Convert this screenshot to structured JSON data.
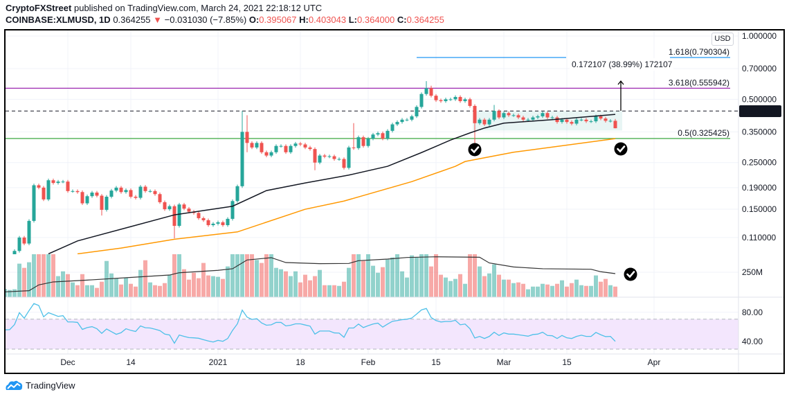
{
  "header": {
    "publisher": "CryptoFXStreet",
    "published_text": "published on TradingView.com, March 24, 2021 22:18:12 UTC",
    "symbol": "COINBASE:XLMUSD, 1D",
    "last": "0.364255",
    "change": "−0.031030 (−7.85%)",
    "o_label": "O:",
    "o": "0.395067",
    "h_label": "H:",
    "h": "0.403043",
    "l_label": "L:",
    "l": "0.364000",
    "c_label": "C:",
    "c": "0.364255",
    "down_arrow_icon": "triangle-down"
  },
  "currency_button": "USD",
  "brand": {
    "name": "TradingView",
    "icon": "tradingview-cloud-logo"
  },
  "colors": {
    "up": "#26a69a",
    "down": "#ef5350",
    "ma_fast": "#131722",
    "ma_slow": "#ff9800",
    "rsi": "#4dc0e8",
    "fib_blue": "#2196f3",
    "fib_purple": "#9c27b0",
    "fib_green": "#4caf50"
  },
  "chart_data": [
    {
      "type": "candlestick",
      "scale": "log",
      "grid": true,
      "y_ticks": [
        "1.000000",
        "0.700000",
        "0.500000",
        "0.350000",
        "0.250000",
        "0.190000",
        "0.150000",
        "0.110000"
      ],
      "x_ticks": [
        "Dec",
        "14",
        "2021",
        "18",
        "Feb",
        "15",
        "Mar",
        "15",
        "Apr"
      ],
      "current_price_label": "0.440000",
      "close": [
        0.085,
        0.088,
        0.095,
        0.11,
        0.103,
        0.132,
        0.195,
        0.19,
        0.167,
        0.206,
        0.2,
        0.203,
        0.203,
        0.183,
        0.183,
        0.181,
        0.16,
        0.173,
        0.18,
        0.174,
        0.149,
        0.172,
        0.184,
        0.19,
        0.181,
        0.185,
        0.172,
        0.17,
        0.192,
        0.183,
        0.183,
        0.177,
        0.162,
        0.15,
        0.155,
        0.125,
        0.158,
        0.151,
        0.146,
        0.144,
        0.136,
        0.133,
        0.126,
        0.128,
        0.13,
        0.126,
        0.135,
        0.164,
        0.193,
        0.35,
        0.31,
        0.295,
        0.31,
        0.28,
        0.27,
        0.28,
        0.3,
        0.3,
        0.28,
        0.3,
        0.308,
        0.305,
        0.295,
        0.29,
        0.25,
        0.27,
        0.267,
        0.268,
        0.26,
        0.26,
        0.236,
        0.295,
        0.293,
        0.33,
        0.3,
        0.325,
        0.34,
        0.345,
        0.325,
        0.354,
        0.38,
        0.39,
        0.4,
        0.4,
        0.415,
        0.46,
        0.53,
        0.565,
        0.52,
        0.495,
        0.49,
        0.5,
        0.5,
        0.513,
        0.49,
        0.5,
        0.465,
        0.385,
        0.4,
        0.38,
        0.4,
        0.44,
        0.41,
        0.43,
        0.42,
        0.42,
        0.41,
        0.4,
        0.4,
        0.41,
        0.415,
        0.43,
        0.41,
        0.41,
        0.39,
        0.4,
        0.39,
        0.383,
        0.4,
        0.4,
        0.393,
        0.393,
        0.415,
        0.405,
        0.395,
        0.395067,
        0.364255
      ],
      "notable_wicks": [
        {
          "index": 20,
          "low": 0.14
        },
        {
          "index": 35,
          "low": 0.109
        },
        {
          "index": 49,
          "high": 0.44
        },
        {
          "index": 50,
          "high": 0.42,
          "low": 0.28
        },
        {
          "index": 64,
          "low": 0.23
        },
        {
          "index": 72,
          "high": 0.385
        },
        {
          "index": 87,
          "high": 0.61
        },
        {
          "index": 88,
          "high": 0.58
        },
        {
          "index": 97,
          "low": 0.3
        },
        {
          "index": 101,
          "high": 0.47
        },
        {
          "index": 126,
          "high": 0.403043,
          "low": 0.364
        }
      ],
      "ma_fast": [
        [
          9,
          0.092
        ],
        [
          15,
          0.106
        ],
        [
          26,
          0.124
        ],
        [
          35,
          0.141
        ],
        [
          47,
          0.155
        ],
        [
          54,
          0.184
        ],
        [
          62,
          0.2
        ],
        [
          71,
          0.218
        ],
        [
          79,
          0.24
        ],
        [
          86,
          0.279
        ],
        [
          92,
          0.32
        ],
        [
          96,
          0.346
        ],
        [
          99,
          0.365
        ],
        [
          103,
          0.385
        ],
        [
          113,
          0.4
        ],
        [
          126,
          0.424
        ]
      ],
      "ma_slow": [
        [
          15,
          0.092
        ],
        [
          24,
          0.098
        ],
        [
          35,
          0.108
        ],
        [
          48,
          0.117
        ],
        [
          62,
          0.15
        ],
        [
          70,
          0.164
        ],
        [
          84,
          0.203
        ],
        [
          93,
          0.24
        ],
        [
          95,
          0.253
        ],
        [
          105,
          0.28
        ],
        [
          126,
          0.325
        ]
      ],
      "levels": {
        "resistance": 0.44,
        "fib_1618": {
          "label": "1.618(0.790304)",
          "value": 0.790304
        },
        "fib_3618": {
          "label": "3.618(0.555942)",
          "value": 0.555942
        },
        "fib_05": {
          "label": "0.5(0.325425)",
          "value": 0.325425
        }
      },
      "measure_label": "0.172107 (38.99%) 172107",
      "consolidation_box": {
        "from_index": 97,
        "to_index": 127,
        "low": 0.355,
        "high": 0.44
      },
      "annotations": [
        "checkmark-icon",
        "checkmark-icon",
        "checkmark-icon"
      ]
    },
    {
      "type": "bar",
      "name": "Volume",
      "y_ticks": [
        "250M"
      ],
      "unit": "M",
      "values": [
        83,
        72,
        79,
        336,
        294,
        350,
        450,
        450,
        450,
        450,
        450,
        211,
        259,
        231,
        148,
        120,
        231,
        120,
        120,
        93,
        155,
        363,
        238,
        190,
        127,
        194,
        134,
        106,
        273,
        370,
        148,
        120,
        113,
        141,
        225,
        450,
        450,
        280,
        176,
        245,
        190,
        343,
        218,
        211,
        204,
        183,
        308,
        450,
        450,
        450,
        450,
        450,
        373,
        343,
        450,
        450,
        294,
        280,
        259,
        211,
        259,
        148,
        225,
        169,
        211,
        273,
        120,
        120,
        120,
        113,
        155,
        294,
        450,
        450,
        363,
        450,
        315,
        245,
        301,
        377,
        398,
        450,
        259,
        197,
        419,
        398,
        450,
        450,
        308,
        450,
        225,
        197,
        162,
        183,
        231,
        134,
        450,
        450,
        308,
        211,
        238,
        329,
        225,
        176,
        176,
        141,
        148,
        134,
        79,
        106,
        106,
        134,
        127,
        113,
        134,
        169,
        106,
        141,
        176,
        120,
        113,
        113,
        218,
        155,
        183,
        120,
        106
      ],
      "ma": [
        [
          0,
          53
        ],
        [
          5,
          65
        ],
        [
          7,
          123
        ],
        [
          10,
          153
        ],
        [
          18,
          174
        ],
        [
          28,
          204
        ],
        [
          34,
          222
        ],
        [
          36,
          245
        ],
        [
          44,
          269
        ],
        [
          47,
          285
        ],
        [
          50,
          373
        ],
        [
          55,
          396
        ],
        [
          58,
          347
        ],
        [
          65,
          336
        ],
        [
          71,
          338
        ],
        [
          73,
          366
        ],
        [
          79,
          382
        ],
        [
          83,
          398
        ],
        [
          89,
          405
        ],
        [
          98,
          400
        ],
        [
          100,
          343
        ],
        [
          105,
          303
        ],
        [
          111,
          285
        ],
        [
          121,
          280
        ],
        [
          123,
          255
        ],
        [
          126,
          236
        ]
      ]
    },
    {
      "type": "line",
      "y_ticks": [
        "80.00",
        "40.00"
      ],
      "band": [
        30,
        70
      ],
      "values": [
        56.3,
        56.6,
        63.4,
        79.4,
        71.9,
        82.2,
        91.6,
        89,
        73.8,
        79.4,
        76.9,
        74.4,
        75.3,
        66.9,
        66.9,
        66.3,
        56.9,
        59.4,
        60.6,
        57.8,
        51.6,
        57.5,
        53.8,
        50.3,
        52.5,
        57.8,
        55.6,
        54.1,
        61.6,
        59.1,
        58.8,
        57.2,
        55.3,
        50.6,
        49.4,
        38.4,
        49.4,
        47.5,
        45.9,
        45.6,
        45,
        43.1,
        41.3,
        40,
        42.2,
        40.9,
        44.7,
        55.6,
        64.4,
        82.8,
        73.4,
        70.3,
        71.3,
        65.6,
        62.5,
        63.1,
        66.3,
        66.3,
        61.6,
        62.5,
        64.4,
        64.4,
        62.8,
        61.3,
        50.6,
        54.7,
        54.7,
        54.7,
        52.2,
        51.9,
        46.3,
        58.8,
        58.8,
        64.1,
        59.4,
        61.9,
        64.1,
        65.3,
        60,
        64.1,
        67.8,
        68.8,
        70,
        70.6,
        72.2,
        77.5,
        83.1,
        85,
        72.8,
        68.8,
        66.9,
        67.5,
        67.5,
        69.1,
        63.1,
        64.1,
        57.8,
        45.3,
        47.5,
        44.7,
        47.5,
        53.1,
        48.8,
        52.2,
        50.6,
        50.6,
        49.7,
        48.8,
        47.8,
        50,
        50.6,
        53.1,
        48.8,
        48.4,
        44.7,
        48.8,
        45.6,
        44.7,
        47.5,
        49.1,
        47.5,
        47.5,
        52.8,
        49.7,
        47.2,
        47.5,
        40.9
      ]
    }
  ]
}
